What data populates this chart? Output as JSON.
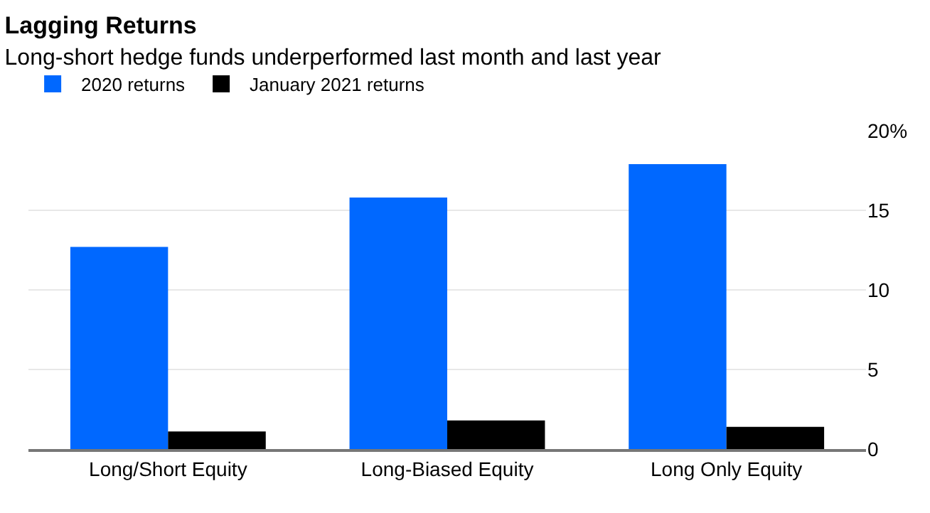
{
  "chart_data": {
    "type": "bar",
    "title": "Lagging Returns",
    "subtitle": "Long-short hedge funds underperformed last month and last year",
    "categories": [
      "Long/Short Equity",
      "Long-Biased Equity",
      "Long Only Equity"
    ],
    "series": [
      {
        "name": "2020 returns",
        "color": "#0068ff",
        "values": [
          12.7,
          15.8,
          17.9
        ]
      },
      {
        "name": "January 2021 returns",
        "color": "#000000",
        "values": [
          1.1,
          1.8,
          1.4
        ]
      }
    ],
    "ylim": [
      0,
      20
    ],
    "yticks": [
      0,
      5,
      10,
      15,
      {
        "value": 20,
        "label": "20%"
      }
    ],
    "grid": "y",
    "legend": "top left"
  }
}
